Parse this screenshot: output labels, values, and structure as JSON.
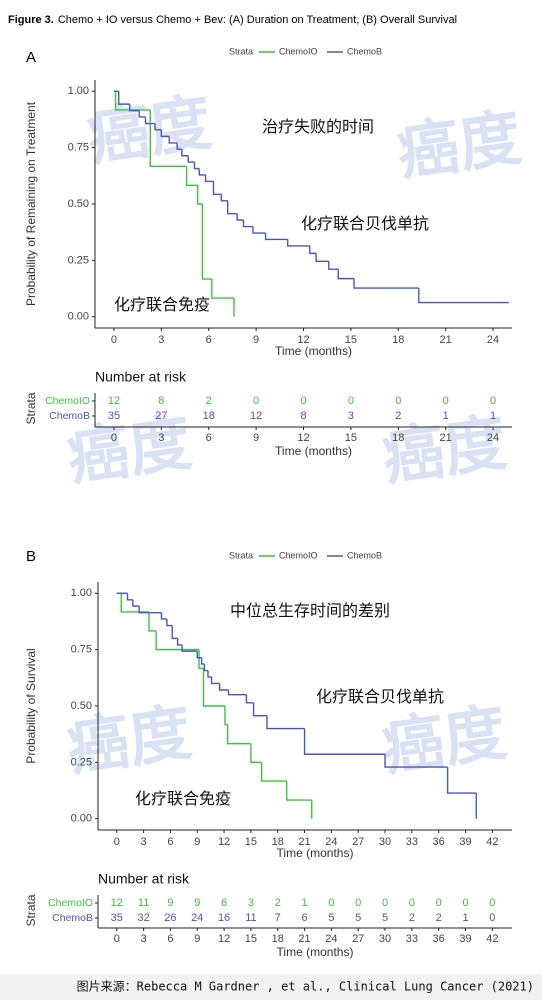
{
  "caption_label": "Figure 3.",
  "caption": "Chemo + IO versus Chemo + Bev: (A) Duration on Treatment, (B) Overall Survival",
  "watermark": "癌度",
  "source": "图片来源：Rebecca M Gardner , et al., Clinical Lung Cancer (2021)",
  "chart_data": [
    {
      "type": "step",
      "panel": "A",
      "legend_title": "Strata",
      "xlabel": "Time (months)",
      "ylabel": "Probability of Remaining on Treatment",
      "xlim": [
        -1.2,
        25.2
      ],
      "ylim": [
        -0.05,
        1.05
      ],
      "xticks": [
        0,
        3,
        6,
        9,
        12,
        15,
        18,
        21,
        24
      ],
      "yticks": [
        {
          "value": 0,
          "label": "0.00"
        },
        0.25,
        {
          "value": 0.5,
          "label": "0.50"
        },
        0.75,
        {
          "value": 1,
          "label": "1.00"
        }
      ],
      "annotations": [
        "治疗失败的时间",
        "化疗联合贝伐单抗",
        "化疗联合免疫"
      ],
      "risk_table": {
        "title": "Number at risk",
        "ylabel": "Strata"
      },
      "series": [
        {
          "name": "ChemoIO",
          "color": "#3cc43c",
          "x": [
            0,
            0.1,
            2.3,
            4.6,
            5.3,
            5.6,
            6.2,
            7.6
          ],
          "values": [
            1,
            0.917,
            0.667,
            0.583,
            0.5,
            0.167,
            0.083,
            0
          ],
          "at_risk": [
            12,
            8,
            2,
            0,
            0,
            0,
            0,
            0,
            0
          ]
        },
        {
          "name": "ChemoB",
          "color": "#4656c8",
          "x": [
            0,
            0.3,
            1,
            1.6,
            2,
            2.6,
            3,
            3.5,
            4,
            4.3,
            4.7,
            5.1,
            5.4,
            5.8,
            6.3,
            6.8,
            7.2,
            7.8,
            8.2,
            8.8,
            9.6,
            11,
            12.4,
            12.8,
            13.6,
            14.2,
            15.2,
            19.3,
            25
          ],
          "values": [
            1,
            0.943,
            0.914,
            0.886,
            0.857,
            0.829,
            0.8,
            0.771,
            0.743,
            0.714,
            0.686,
            0.657,
            0.629,
            0.6,
            0.543,
            0.514,
            0.457,
            0.429,
            0.4,
            0.371,
            0.343,
            0.314,
            0.281,
            0.246,
            0.211,
            0.169,
            0.127,
            0.063,
            0.063
          ],
          "at_risk": [
            35,
            27,
            18,
            12,
            8,
            3,
            2,
            1,
            1
          ]
        }
      ]
    },
    {
      "type": "step",
      "panel": "B",
      "legend_title": "Strata",
      "xlabel": "Time (months)",
      "ylabel": "Probability of Survival",
      "xlim": [
        -2.1,
        44.2
      ],
      "ylim": [
        -0.05,
        1.05
      ],
      "xticks": [
        0,
        3,
        6,
        9,
        12,
        15,
        18,
        21,
        24,
        27,
        30,
        33,
        36,
        39,
        42
      ],
      "yticks": [
        {
          "value": 0,
          "label": "0.00"
        },
        0.25,
        {
          "value": 0.5,
          "label": "0.50"
        },
        0.75,
        {
          "value": 1,
          "label": "1.00"
        }
      ],
      "annotations": [
        "中位总生存时间的差别",
        "化疗联合贝伐单抗",
        "化疗联合免疫"
      ],
      "risk_table": {
        "title": "Number at risk",
        "ylabel": "Strata"
      },
      "series": [
        {
          "name": "ChemoIO",
          "color": "#3cc43c",
          "x": [
            0,
            0.5,
            3.6,
            4.4,
            9.2,
            9.7,
            12.1,
            12.4,
            15,
            16.2,
            19,
            21.8
          ],
          "values": [
            1,
            0.917,
            0.833,
            0.75,
            0.667,
            0.5,
            0.417,
            0.333,
            0.25,
            0.167,
            0.083,
            0
          ],
          "at_risk": [
            12,
            11,
            9,
            9,
            6,
            3,
            2,
            1,
            0,
            0,
            0,
            0,
            0,
            0,
            0
          ]
        },
        {
          "name": "ChemoB",
          "color": "#4656c8",
          "x": [
            0,
            1.2,
            1.8,
            2.5,
            5,
            5.6,
            6.2,
            6.8,
            7.3,
            9,
            9.5,
            9.8,
            10.2,
            10.6,
            11.5,
            12.5,
            14.5,
            15.3,
            16.8,
            21,
            30,
            37,
            40.2
          ],
          "values": [
            1,
            0.971,
            0.943,
            0.914,
            0.886,
            0.857,
            0.8,
            0.771,
            0.743,
            0.714,
            0.686,
            0.657,
            0.629,
            0.6,
            0.571,
            0.55,
            0.514,
            0.457,
            0.4,
            0.286,
            0.229,
            0.114,
            0
          ],
          "at_risk": [
            35,
            32,
            26,
            24,
            16,
            11,
            7,
            6,
            5,
            5,
            5,
            2,
            2,
            1,
            0
          ]
        }
      ]
    }
  ]
}
